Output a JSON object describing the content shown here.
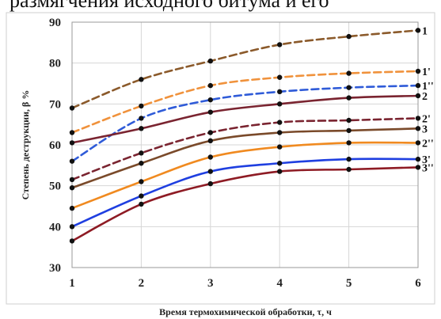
{
  "caption_fragment": "размягчения исходного битума и его",
  "chart_data": {
    "type": "line",
    "title": "",
    "xlabel": "Время термохимической обработки, τ, ч",
    "ylabel": "Степень деструкции, β %",
    "xlim": [
      1,
      6
    ],
    "ylim": [
      30,
      90
    ],
    "xticks": [
      1,
      2,
      3,
      4,
      5,
      6
    ],
    "yticks": [
      30,
      40,
      50,
      60,
      70,
      80,
      90
    ],
    "grid": true,
    "x": [
      1,
      2,
      3,
      4,
      5,
      6
    ],
    "series": [
      {
        "label": "1",
        "color": "#8B5A2B",
        "dash": true,
        "values": [
          69,
          76,
          80.5,
          84.5,
          86.5,
          88
        ]
      },
      {
        "label": "1'",
        "color": "#F0923C",
        "dash": true,
        "values": [
          63,
          69.5,
          74.5,
          76.5,
          77.5,
          78
        ]
      },
      {
        "label": "1''",
        "color": "#2F5BD8",
        "dash": true,
        "values": [
          56,
          66.5,
          71,
          73,
          74,
          74.5
        ]
      },
      {
        "label": "2",
        "color": "#7A2430",
        "dash": false,
        "values": [
          60.5,
          64,
          68,
          70,
          71.5,
          72
        ]
      },
      {
        "label": "2'",
        "color": "#7A2430",
        "dash": true,
        "values": [
          51.5,
          58,
          63,
          65.5,
          66,
          66.5
        ]
      },
      {
        "label": "3",
        "color": "#7A4A2A",
        "dash": false,
        "values": [
          49.5,
          55.5,
          61,
          63,
          63.5,
          64
        ]
      },
      {
        "label": "2''",
        "color": "#F08A20",
        "dash": false,
        "values": [
          44.5,
          51,
          57,
          59.5,
          60.5,
          60.5
        ]
      },
      {
        "label": "3'",
        "color": "#1F3FE0",
        "dash": false,
        "values": [
          40,
          47.5,
          53.5,
          55.5,
          56.5,
          56.5
        ]
      },
      {
        "label": "3''",
        "color": "#8E1B24",
        "dash": false,
        "values": [
          36.5,
          45.5,
          50.5,
          53.5,
          54,
          54.5
        ]
      }
    ]
  }
}
